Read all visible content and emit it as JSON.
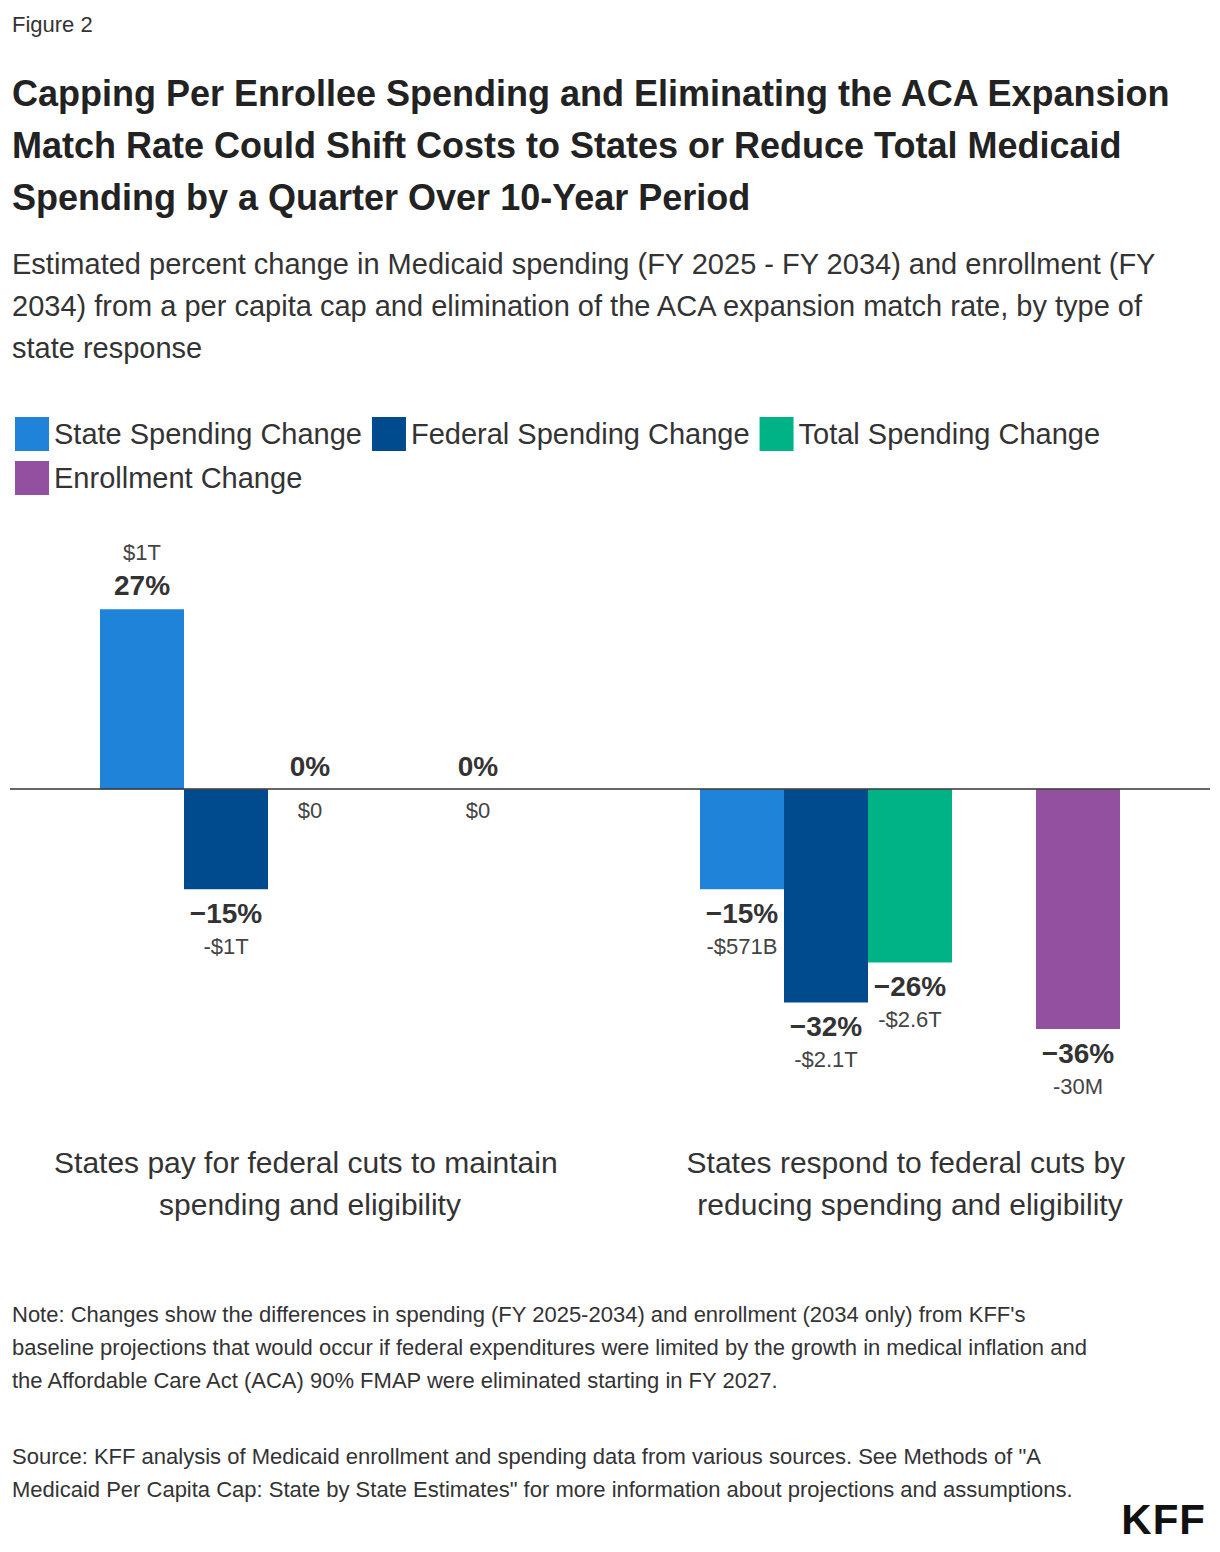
{
  "chart_data": {
    "type": "bar",
    "figure_label": "Figure 2",
    "title": "Capping Per Enrollee Spending and Eliminating the ACA Expansion Match Rate Could Shift Costs to States or Reduce Total Medicaid Spending by a Quarter Over 10-Year Period",
    "subtitle": "Estimated percent change in Medicaid spending (FY 2025 - FY 2034) and enrollment (FY 2034) from a per capita cap and elimination of the ACA expansion match rate, by type of state response",
    "categories": [
      "States pay for federal cuts to maintain spending and eligibility",
      "States respond to federal cuts by reducing spending and eligibility"
    ],
    "series": [
      {
        "name": "State Spending Change",
        "color": "#1f83d9",
        "values": [
          27,
          -15
        ],
        "value_labels": [
          "27%",
          "−15%"
        ],
        "amounts": [
          "$1T",
          "-$571B"
        ]
      },
      {
        "name": "Federal Spending Change",
        "color": "#004b8d",
        "values": [
          -15,
          -32
        ],
        "value_labels": [
          "−15%",
          "−32%"
        ],
        "amounts": [
          "-$1T",
          "-$2.1T"
        ]
      },
      {
        "name": "Total Spending Change",
        "color": "#00b386",
        "values": [
          0,
          -26
        ],
        "value_labels": [
          "0%",
          "−26%"
        ],
        "amounts": [
          "$0",
          "-$2.6T"
        ]
      },
      {
        "name": "Enrollment Change",
        "color": "#9350a0",
        "values": [
          0,
          -36
        ],
        "value_labels": [
          "0%",
          "−36%"
        ],
        "amounts": [
          "$0",
          "-30M"
        ]
      }
    ],
    "ylim": [
      -45,
      35
    ],
    "grid": false,
    "legend": "top-left",
    "data_labels": true,
    "tick_labels": false,
    "note": "Note: Changes show the differences in spending (FY 2025-2034) and enrollment (2034 only) from KFF's baseline projections that would occur if federal expenditures were limited by the growth in medical inflation and the Affordable Care Act (ACA) 90% FMAP were eliminated starting in FY 2027.",
    "source": "Source: KFF analysis of Medicaid enrollment and spending data from various sources. See Methods of \"A Medicaid Per Capita Cap: State by State Estimates\" for more information about projections and assumptions.",
    "logo": "KFF"
  }
}
